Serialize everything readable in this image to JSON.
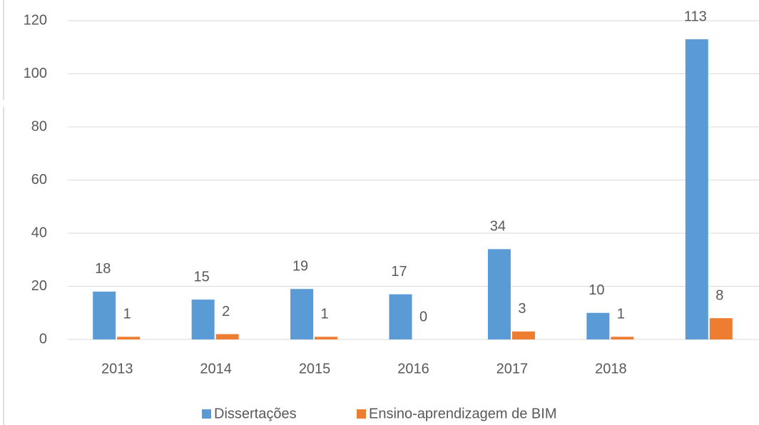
{
  "chart_data": {
    "type": "bar",
    "categories": [
      "2013",
      "2014",
      "2015",
      "2016",
      "2017",
      "2018",
      null
    ],
    "series": [
      {
        "name": "Dissertações",
        "color": "#5b9bd5",
        "values": [
          18,
          15,
          19,
          17,
          34,
          10,
          113
        ]
      },
      {
        "name": "Ensino-aprendizagem de BIM",
        "color": "#ed7d31",
        "values": [
          1,
          2,
          1,
          0,
          3,
          1,
          8
        ]
      }
    ],
    "ylim": [
      0,
      120
    ],
    "yticks": [
      0,
      20,
      40,
      60,
      80,
      100,
      120
    ],
    "grid": true,
    "legend": "bottom"
  }
}
